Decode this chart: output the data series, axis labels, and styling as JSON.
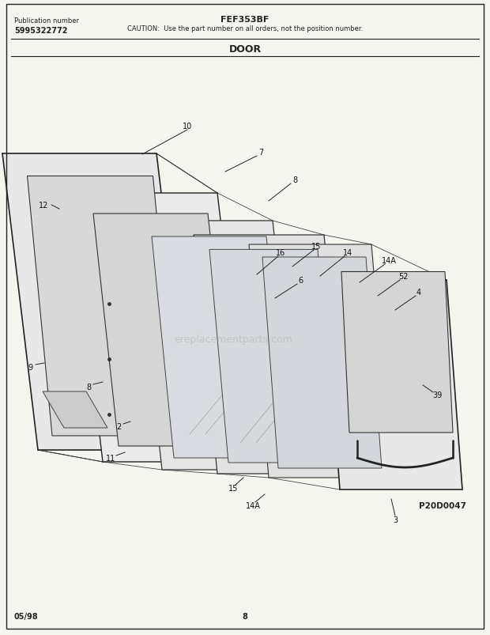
{
  "title": "FEF353BF",
  "caution": "CAUTION:  Use the part number on all orders, not the position number.",
  "section": "DOOR",
  "pub_label": "Publication number",
  "pub_number": "5995322772",
  "diagram_id": "P20D0047",
  "date": "05/98",
  "page": "8",
  "bg_color": "#f5f5f0",
  "border_color": "#222222",
  "line_color": "#222222"
}
